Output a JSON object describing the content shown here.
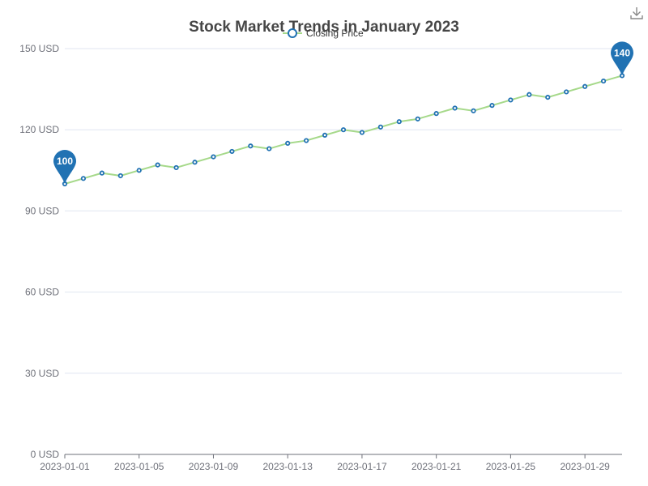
{
  "toolbox": {
    "download_icon": "download-icon"
  },
  "chart_data": {
    "type": "line",
    "title": "Stock Market Trends in January 2023",
    "xlabel": "",
    "ylabel": "",
    "ylim": [
      0,
      150
    ],
    "y_ticks": [
      0,
      30,
      60,
      90,
      120,
      150
    ],
    "y_unit": "USD",
    "x_tick_labels": [
      "2023-01-01",
      "2023-01-05",
      "2023-01-09",
      "2023-01-13",
      "2023-01-17",
      "2023-01-21",
      "2023-01-25",
      "2023-01-29"
    ],
    "x": [
      "2023-01-01",
      "2023-01-02",
      "2023-01-03",
      "2023-01-04",
      "2023-01-05",
      "2023-01-06",
      "2023-01-07",
      "2023-01-08",
      "2023-01-09",
      "2023-01-10",
      "2023-01-11",
      "2023-01-12",
      "2023-01-13",
      "2023-01-14",
      "2023-01-15",
      "2023-01-16",
      "2023-01-17",
      "2023-01-18",
      "2023-01-19",
      "2023-01-20",
      "2023-01-21",
      "2023-01-22",
      "2023-01-23",
      "2023-01-24",
      "2023-01-25",
      "2023-01-26",
      "2023-01-27",
      "2023-01-28",
      "2023-01-29",
      "2023-01-30",
      "2023-01-31"
    ],
    "series": [
      {
        "name": "Closing Price",
        "color": "#a6d98a",
        "marker_color": "#2172b3",
        "values": [
          100,
          102,
          104,
          103,
          105,
          107,
          106,
          108,
          110,
          112,
          114,
          113,
          115,
          116,
          118,
          120,
          119,
          121,
          123,
          124,
          126,
          128,
          127,
          129,
          131,
          133,
          132,
          134,
          136,
          138,
          140
        ]
      }
    ],
    "legend": {
      "position": "top-center",
      "entries": [
        "Closing Price"
      ]
    },
    "markpoints": [
      {
        "label": "100",
        "index": 0
      },
      {
        "label": "140",
        "index": 30
      }
    ],
    "markpoint_color": "#2172b3",
    "grid": true,
    "grid_color": "#e0e6f1"
  }
}
